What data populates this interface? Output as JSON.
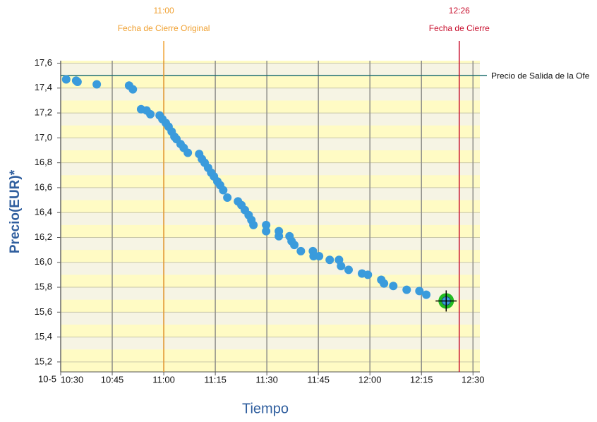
{
  "chart_data": {
    "type": "scatter",
    "x_label": "Tiempo",
    "y_label": "Precio(EUR)*",
    "date_label": "10-5",
    "xlim": [
      630,
      752
    ],
    "ylim": [
      15.12,
      17.62
    ],
    "xticks": [
      {
        "value": 630,
        "label": "10:30"
      },
      {
        "value": 645,
        "label": "10:45"
      },
      {
        "value": 660,
        "label": "11:00"
      },
      {
        "value": 675,
        "label": "11:15"
      },
      {
        "value": 690,
        "label": "11:30"
      },
      {
        "value": 705,
        "label": "11:45"
      },
      {
        "value": 720,
        "label": "12:00"
      },
      {
        "value": 735,
        "label": "12:15"
      },
      {
        "value": 750,
        "label": "12:30"
      }
    ],
    "yticks": [
      {
        "value": 15.2,
        "label": "15,2"
      },
      {
        "value": 15.4,
        "label": "15,4"
      },
      {
        "value": 15.6,
        "label": "15,6"
      },
      {
        "value": 15.8,
        "label": "15,8"
      },
      {
        "value": 16.0,
        "label": "16,0"
      },
      {
        "value": 16.2,
        "label": "16,2"
      },
      {
        "value": 16.4,
        "label": "16,4"
      },
      {
        "value": 16.6,
        "label": "16,6"
      },
      {
        "value": 16.8,
        "label": "16,8"
      },
      {
        "value": 17.0,
        "label": "17,0"
      },
      {
        "value": 17.2,
        "label": "17,2"
      },
      {
        "value": 17.4,
        "label": "17,4"
      },
      {
        "value": 17.6,
        "label": "17,6"
      }
    ],
    "grid": true,
    "color": "#3a9bdc",
    "x": [
      631.6,
      634.5,
      634.9,
      640.5,
      649.9,
      651.0,
      653.4,
      655.0,
      656.1,
      658.8,
      659.6,
      660.6,
      661.4,
      662.3,
      663.1,
      663.7,
      664.9,
      665.8,
      667.0,
      670.3,
      671.1,
      671.9,
      672.9,
      673.8,
      674.6,
      675.6,
      676.4,
      677.3,
      678.5,
      681.6,
      682.6,
      683.6,
      684.7,
      685.5,
      686.1,
      689.8,
      689.8,
      693.5,
      693.5,
      696.6,
      697.2,
      698.0,
      699.9,
      703.4,
      703.6,
      705.2,
      708.3,
      711.0,
      711.6,
      713.8,
      717.7,
      719.4,
      723.3,
      724.1,
      726.8,
      730.7,
      734.4,
      736.4
    ],
    "values": [
      17.47,
      17.46,
      17.45,
      17.43,
      17.42,
      17.39,
      17.23,
      17.22,
      17.19,
      17.18,
      17.15,
      17.12,
      17.09,
      17.05,
      17.01,
      16.99,
      16.95,
      16.92,
      16.88,
      16.87,
      16.83,
      16.8,
      16.76,
      16.72,
      16.69,
      16.65,
      16.62,
      16.58,
      16.52,
      16.49,
      16.46,
      16.42,
      16.38,
      16.34,
      16.3,
      16.3,
      16.25,
      16.25,
      16.21,
      16.21,
      16.17,
      16.14,
      16.09,
      16.09,
      16.05,
      16.05,
      16.02,
      16.02,
      15.97,
      15.94,
      15.91,
      15.9,
      15.86,
      15.83,
      15.81,
      15.78,
      15.77,
      15.74
    ],
    "highlight": {
      "x": 742.2,
      "y": 15.69,
      "color": "#22bb22"
    },
    "vlines": [
      {
        "x": 660,
        "time_label": "11:00",
        "text": "Fecha de Cierre Original",
        "color": "#f0a030"
      },
      {
        "x": 746,
        "time_label": "12:26",
        "text": "Fecha de Cierre",
        "color": "#c8102e"
      }
    ],
    "hline": {
      "y": 17.5,
      "text": "Precio de Salida de la Ofe",
      "color": "#1f6f6f"
    }
  }
}
